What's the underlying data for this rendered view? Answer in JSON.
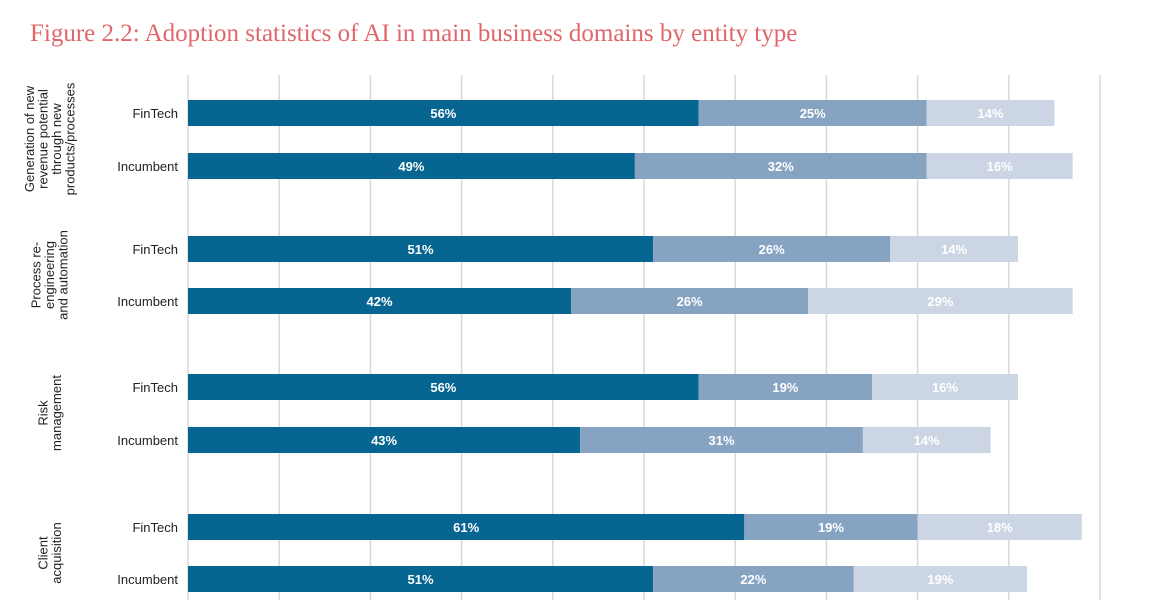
{
  "chart_data": {
    "type": "bar",
    "orientation": "horizontal",
    "stacked": true,
    "title": "Figure 2.2: Adoption statistics of AI in main business domains by entity type",
    "xlim": [
      0,
      100
    ],
    "grid": true,
    "groups": [
      {
        "name": [
          "Generation of new",
          "revenue potential",
          "through new",
          "products/processes"
        ],
        "rows": [
          {
            "category": "FinTech",
            "values": [
              56,
              25,
              14
            ],
            "labels": [
              "56%",
              "25%",
              "14%"
            ]
          },
          {
            "category": "Incumbent",
            "values": [
              49,
              32,
              16
            ],
            "labels": [
              "49%",
              "32%",
              "16%"
            ]
          }
        ]
      },
      {
        "name": [
          "Process re-",
          "engineering",
          "and automation"
        ],
        "rows": [
          {
            "category": "FinTech",
            "values": [
              51,
              26,
              14
            ],
            "labels": [
              "51%",
              "26%",
              "14%"
            ]
          },
          {
            "category": "Incumbent",
            "values": [
              42,
              26,
              29
            ],
            "labels": [
              "42%",
              "26%",
              "29%"
            ]
          }
        ]
      },
      {
        "name": [
          "Risk",
          "management"
        ],
        "rows": [
          {
            "category": "FinTech",
            "values": [
              56,
              19,
              16
            ],
            "labels": [
              "56%",
              "19%",
              "16%"
            ]
          },
          {
            "category": "Incumbent",
            "values": [
              43,
              31,
              14
            ],
            "labels": [
              "43%",
              "31%",
              "14%"
            ]
          }
        ]
      },
      {
        "name": [
          "Client",
          "acquisition"
        ],
        "rows": [
          {
            "category": "FinTech",
            "values": [
              61,
              19,
              18
            ],
            "labels": [
              "61%",
              "19%",
              "18%"
            ]
          },
          {
            "category": "Incumbent",
            "values": [
              51,
              22,
              19
            ],
            "labels": [
              "51%",
              "22%",
              "19%"
            ]
          }
        ]
      }
    ],
    "colors": [
      "#076592",
      "#87a3c2",
      "#ccd5e4"
    ]
  }
}
